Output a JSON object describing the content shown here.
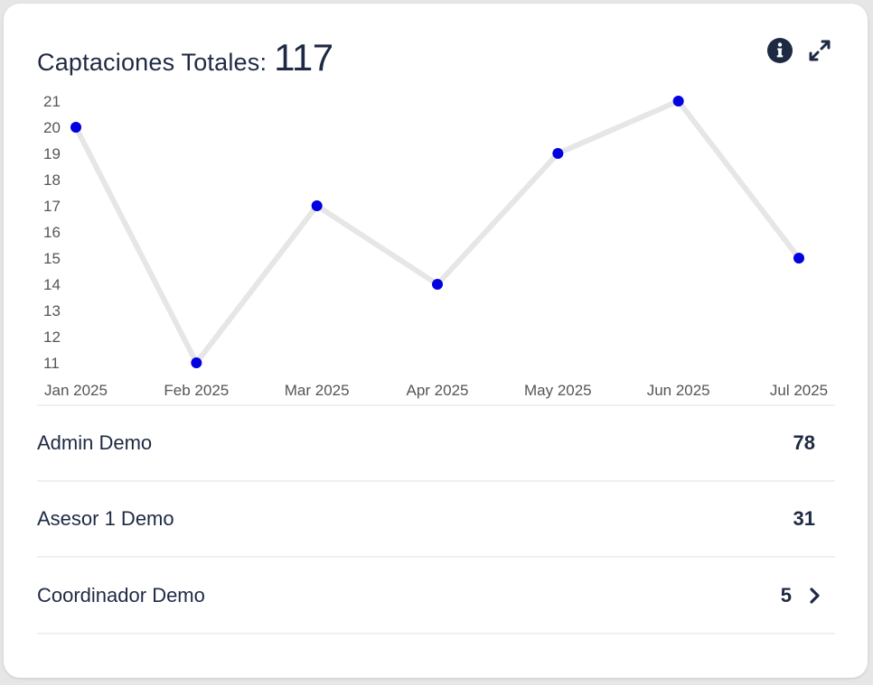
{
  "header": {
    "title": "Captaciones Totales:",
    "total": "117",
    "info_icon": "info-icon",
    "expand_icon": "expand-icon"
  },
  "colors": {
    "text": "#1e2a44",
    "line": "#e6e6e6",
    "point": "#0000e0",
    "tick": "#555555"
  },
  "chart_data": {
    "type": "line",
    "categories": [
      "Jan 2025",
      "Feb 2025",
      "Mar 2025",
      "Apr 2025",
      "May 2025",
      "Jun 2025",
      "Jul 2025"
    ],
    "values": [
      20,
      11,
      17,
      14,
      19,
      21,
      15
    ],
    "yticks": [
      11,
      12,
      13,
      14,
      15,
      16,
      17,
      18,
      19,
      20,
      21
    ],
    "ylim": [
      11,
      21
    ],
    "grid": false,
    "legend": "none"
  },
  "list": {
    "rows": [
      {
        "name": "Admin Demo",
        "count": "78",
        "chevron": false
      },
      {
        "name": "Asesor 1 Demo",
        "count": "31",
        "chevron": false
      },
      {
        "name": "Coordinador Demo",
        "count": "5",
        "chevron": true
      }
    ]
  }
}
